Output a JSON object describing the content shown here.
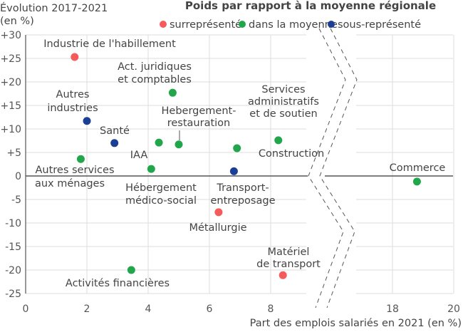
{
  "chart_data": {
    "type": "scatter",
    "title": "Poids par rapport à la moyenne régionale",
    "ylabel_lines": [
      "Évolution 2017-2021",
      "(en %)"
    ],
    "xlabel": "Part des emplois salariés en 2021 (en %)",
    "legend": [
      {
        "key": "sur",
        "label": "surreprésenté",
        "color": "#f55b5b"
      },
      {
        "key": "moy",
        "label": "dans la moyenne",
        "color": "#22a64b"
      },
      {
        "key": "sous",
        "label": "sous-représenté",
        "color": "#1c3f96"
      }
    ],
    "legend_position": "top-right",
    "xlim_segments": [
      [
        0,
        9.3
      ],
      [
        17.2,
        20
      ]
    ],
    "x_ticks": [
      0,
      2,
      4,
      6,
      8,
      18,
      20
    ],
    "x_tick_labels": [
      "0",
      "2",
      "4",
      "6",
      "8",
      "18",
      "20"
    ],
    "ylim": [
      -25,
      30
    ],
    "y_ticks": [
      30,
      25,
      20,
      15,
      10,
      5,
      0,
      -5,
      -10,
      -15,
      -20,
      -25
    ],
    "y_tick_labels": [
      "+30",
      "+25",
      "+20",
      "+15",
      "+10",
      "+5",
      "0",
      "-5",
      "-10",
      "-15",
      "-20",
      "-25"
    ],
    "grid": true,
    "axis_break": "between 9.3 and 17.2 on x axis",
    "points": [
      {
        "label": [
          "Industrie de l'habillement"
        ],
        "x": 1.6,
        "y": 25.3,
        "group": "sur"
      },
      {
        "label": [
          "Autres",
          "industries"
        ],
        "x": 2.0,
        "y": 11.7,
        "group": "sous"
      },
      {
        "label": [
          "Santé"
        ],
        "x": 2.9,
        "y": 7.0,
        "group": "sous"
      },
      {
        "label": [
          "Autres services",
          "aux ménages"
        ],
        "x": 1.8,
        "y": 3.6,
        "group": "moy"
      },
      {
        "label": [
          "Act. juridiques",
          "et comptables"
        ],
        "x": 4.8,
        "y": 17.7,
        "group": "moy"
      },
      {
        "label": [
          "IAA"
        ],
        "x": 4.35,
        "y": 7.1,
        "group": "moy"
      },
      {
        "label": [
          "Hebergement-",
          "restauration"
        ],
        "x": 5.0,
        "y": 6.7,
        "group": "moy"
      },
      {
        "label": [
          "Hébergement",
          "médico-social"
        ],
        "x": 4.1,
        "y": 1.5,
        "group": "moy"
      },
      {
        "label": [
          "Services",
          "administratifs",
          "et de soutien"
        ],
        "x": 6.9,
        "y": 5.9,
        "group": "moy"
      },
      {
        "label": [
          "Transport-",
          "entreposage"
        ],
        "x": 6.8,
        "y": 1.0,
        "group": "sous"
      },
      {
        "label": [
          "Construction"
        ],
        "x": 8.25,
        "y": 7.6,
        "group": "moy"
      },
      {
        "label": [
          "Métallurgie"
        ],
        "x": 6.3,
        "y": -7.7,
        "group": "sur"
      },
      {
        "label": [
          "Matériel",
          "de transport"
        ],
        "x": 8.4,
        "y": -21.1,
        "group": "sur"
      },
      {
        "label": [
          "Activités financières"
        ],
        "x": 3.45,
        "y": -20.0,
        "group": "moy"
      },
      {
        "label": [
          "Commerce"
        ],
        "x": 18.8,
        "y": -1.2,
        "group": "moy"
      }
    ]
  }
}
